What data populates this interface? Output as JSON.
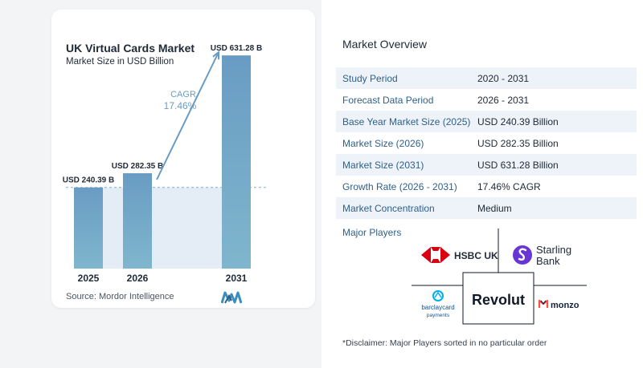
{
  "left_card": {
    "title": "UK Virtual Cards Market",
    "subtitle": "Market Size in USD Billion",
    "source": "Source:  Mordor Intelligence"
  },
  "chart_data": {
    "type": "bar",
    "title": "UK Virtual Cards Market",
    "subtitle": "Market Size in USD Billion",
    "categories": [
      "2025",
      "2026",
      "2031"
    ],
    "values": [
      240.39,
      282.35,
      631.28
    ],
    "data_labels": [
      "USD 240.39 B",
      "USD 282.35 B",
      "USD 631.28 B"
    ],
    "ylim": [
      0,
      660
    ],
    "grid": false,
    "annotation": {
      "label": "CAGR",
      "value": "17.46%"
    },
    "colors": {
      "bar_top": "#6a9cc3",
      "bar_bottom": "#7fb6cd",
      "band": "#e4edf5",
      "arrow": "#6a9cc3",
      "dashed": "#7fb0c9"
    }
  },
  "overview": {
    "title": "Market Overview",
    "rows": [
      {
        "label": "Study Period",
        "value": "2020 - 2031"
      },
      {
        "label": "Forecast Data Period",
        "value": "2026 - 2031"
      },
      {
        "label": "Base Year Market Size (2025)",
        "value": "USD 240.39 Billion"
      },
      {
        "label": "Market Size (2026)",
        "value": "USD 282.35 Billion"
      },
      {
        "label": "Market Size (2031)",
        "value": "USD 631.28 Billion"
      },
      {
        "label": "Growth Rate (2026 - 2031)",
        "value": "17.46% CAGR"
      },
      {
        "label": "Market Concentration",
        "value": "Medium"
      }
    ]
  },
  "players": {
    "title": "Major Players",
    "logos": {
      "hsbc": "HSBC UK",
      "starling_1": "Starling",
      "starling_2": "Bank",
      "barclaycard_1": "barclaycard",
      "barclaycard_2": "payments",
      "revolut": "Revolut",
      "monzo": "monzo"
    }
  },
  "disclaimer": "*Disclaimer: Major Players sorted in no particular order"
}
